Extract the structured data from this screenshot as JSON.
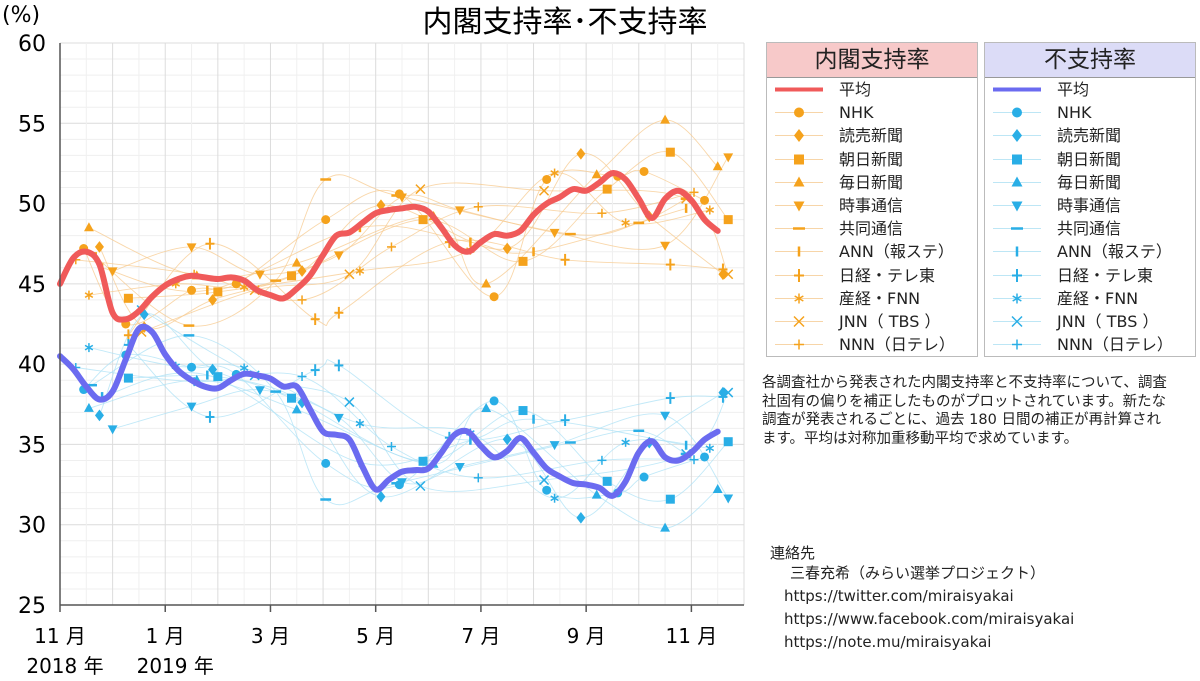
{
  "chart_data": {
    "type": "line",
    "title": "内閣支持率･不支持率",
    "ylabel": "(%)",
    "ylim": [
      25,
      60
    ],
    "yticks": [
      25,
      30,
      35,
      40,
      45,
      50,
      55,
      60
    ],
    "xlim": [
      0,
      13
    ],
    "x_ticks": [
      {
        "x": 0,
        "label": "11 月",
        "sub": "2018 年"
      },
      {
        "x": 2,
        "label": "1 月",
        "sub": "2019 年"
      },
      {
        "x": 4,
        "label": "3 月",
        "sub": ""
      },
      {
        "x": 6,
        "label": "5 月",
        "sub": ""
      },
      {
        "x": 8,
        "label": "7 月",
        "sub": ""
      },
      {
        "x": 10,
        "label": "9 月",
        "sub": ""
      },
      {
        "x": 12,
        "label": "11 月",
        "sub": ""
      }
    ],
    "series": [
      {
        "name": "平均",
        "group": "内閣支持率",
        "color": "#f05a5a",
        "points": [
          [
            0,
            45.0
          ],
          [
            0.25,
            46.6
          ],
          [
            0.5,
            47.0
          ],
          [
            0.75,
            46.2
          ],
          [
            1.0,
            43.2
          ],
          [
            1.25,
            42.8
          ],
          [
            1.5,
            43.3
          ],
          [
            1.75,
            44.2
          ],
          [
            2.0,
            44.9
          ],
          [
            2.25,
            45.3
          ],
          [
            2.5,
            45.5
          ],
          [
            2.75,
            45.4
          ],
          [
            3.0,
            45.3
          ],
          [
            3.25,
            45.4
          ],
          [
            3.5,
            45.2
          ],
          [
            3.75,
            44.6
          ],
          [
            4.0,
            44.3
          ],
          [
            4.25,
            44.1
          ],
          [
            4.5,
            44.7
          ],
          [
            4.75,
            45.5
          ],
          [
            5.0,
            46.8
          ],
          [
            5.25,
            48.0
          ],
          [
            5.5,
            48.2
          ],
          [
            5.75,
            48.8
          ],
          [
            6.0,
            49.4
          ],
          [
            6.25,
            49.6
          ],
          [
            6.5,
            49.7
          ],
          [
            6.75,
            49.8
          ],
          [
            7.0,
            49.5
          ],
          [
            7.25,
            48.5
          ],
          [
            7.5,
            47.4
          ],
          [
            7.75,
            47.0
          ],
          [
            8.0,
            47.6
          ],
          [
            8.25,
            48.1
          ],
          [
            8.5,
            48.0
          ],
          [
            8.75,
            48.3
          ],
          [
            9.0,
            49.3
          ],
          [
            9.25,
            50.0
          ],
          [
            9.5,
            50.4
          ],
          [
            9.75,
            50.9
          ],
          [
            10.0,
            50.8
          ],
          [
            10.25,
            51.3
          ],
          [
            10.5,
            51.9
          ],
          [
            10.75,
            51.5
          ],
          [
            11.0,
            50.3
          ],
          [
            11.25,
            49.1
          ],
          [
            11.5,
            50.3
          ],
          [
            11.75,
            50.8
          ],
          [
            12.0,
            50.2
          ],
          [
            12.25,
            49.0
          ],
          [
            12.5,
            48.3
          ]
        ],
        "samples": [
          {
            "s": "circle",
            "pts": [
              [
                0.45,
                47.2
              ],
              [
                1.25,
                42.5
              ],
              [
                2.5,
                44.6
              ],
              [
                3.35,
                45.0
              ],
              [
                5.05,
                49.0
              ],
              [
                6.45,
                50.6
              ],
              [
                8.25,
                44.2
              ],
              [
                9.25,
                51.5
              ],
              [
                10.6,
                51.7
              ],
              [
                11.1,
                52.0
              ],
              [
                12.25,
                50.2
              ]
            ]
          },
          {
            "s": "diamond",
            "pts": [
              [
                0.75,
                47.3
              ],
              [
                1.6,
                42.3
              ],
              [
                2.9,
                44.0
              ],
              [
                4.6,
                45.8
              ],
              [
                6.1,
                49.9
              ],
              [
                8.5,
                47.2
              ],
              [
                9.9,
                53.1
              ],
              [
                11.2,
                49.2
              ],
              [
                12.6,
                45.6
              ]
            ]
          },
          {
            "s": "square",
            "pts": [
              [
                1.3,
                44.1
              ],
              [
                3.0,
                44.5
              ],
              [
                4.4,
                45.5
              ],
              [
                6.9,
                49.0
              ],
              [
                8.8,
                46.4
              ],
              [
                10.4,
                50.9
              ],
              [
                11.6,
                53.2
              ],
              [
                12.7,
                49.0
              ]
            ]
          },
          {
            "s": "triangle",
            "pts": [
              [
                0.55,
                48.5
              ],
              [
                2.6,
                45.5
              ],
              [
                4.5,
                46.3
              ],
              [
                7.1,
                49.2
              ],
              [
                8.1,
                45.0
              ],
              [
                10.2,
                51.8
              ],
              [
                11.5,
                55.2
              ],
              [
                12.5,
                52.3
              ]
            ]
          },
          {
            "s": "triangledown",
            "pts": [
              [
                1.0,
                45.8
              ],
              [
                2.5,
                47.3
              ],
              [
                3.8,
                45.6
              ],
              [
                5.3,
                46.8
              ],
              [
                6.5,
                50.4
              ],
              [
                7.6,
                49.6
              ],
              [
                9.4,
                48.2
              ],
              [
                11.5,
                47.4
              ],
              [
                12.7,
                52.9
              ]
            ]
          },
          {
            "s": "dash",
            "pts": [
              [
                0.6,
                46.9
              ],
              [
                2.45,
                42.4
              ],
              [
                4.1,
                45.2
              ],
              [
                5.05,
                51.5
              ],
              [
                6.4,
                50.5
              ],
              [
                9.7,
                48.1
              ],
              [
                11.0,
                48.8
              ],
              [
                11.9,
                50.3
              ]
            ]
          },
          {
            "s": "vbar",
            "pts": [
              [
                0.8,
                46.0
              ],
              [
                2.8,
                44.6
              ],
              [
                5.7,
                48.5
              ],
              [
                7.8,
                47.6
              ],
              [
                9.0,
                47.0
              ],
              [
                11.9,
                49.7
              ]
            ]
          },
          {
            "s": "plusbold",
            "pts": [
              [
                1.3,
                41.8
              ],
              [
                2.85,
                47.5
              ],
              [
                4.85,
                42.8
              ],
              [
                5.3,
                43.2
              ],
              [
                7.4,
                47.6
              ],
              [
                9.6,
                46.5
              ],
              [
                11.6,
                46.2
              ],
              [
                12.6,
                45.9
              ]
            ]
          },
          {
            "s": "asterisk",
            "pts": [
              [
                0.55,
                44.3
              ],
              [
                2.2,
                45.0
              ],
              [
                3.5,
                44.8
              ],
              [
                5.7,
                45.8
              ],
              [
                7.8,
                47.1
              ],
              [
                9.4,
                51.9
              ],
              [
                10.75,
                48.8
              ],
              [
                12.35,
                49.6
              ]
            ]
          },
          {
            "s": "cross",
            "pts": [
              [
                1.55,
                42.0
              ],
              [
                3.7,
                44.6
              ],
              [
                5.5,
                45.6
              ],
              [
                6.85,
                50.9
              ],
              [
                9.2,
                50.8
              ],
              [
                11.9,
                50.3
              ],
              [
                12.7,
                45.6
              ]
            ]
          },
          {
            "s": "plus",
            "pts": [
              [
                0.3,
                46.5
              ],
              [
                2.55,
                45.6
              ],
              [
                4.6,
                44.0
              ],
              [
                6.3,
                47.3
              ],
              [
                7.95,
                49.8
              ],
              [
                10.3,
                49.4
              ],
              [
                12.05,
                50.7
              ]
            ]
          }
        ]
      },
      {
        "name": "平均",
        "group": "不支持率",
        "color": "#6b6bf0",
        "points": [
          [
            0,
            40.5
          ],
          [
            0.25,
            39.7
          ],
          [
            0.5,
            38.6
          ],
          [
            0.75,
            37.8
          ],
          [
            1.0,
            38.3
          ],
          [
            1.25,
            40.3
          ],
          [
            1.5,
            42.2
          ],
          [
            1.75,
            42.0
          ],
          [
            2.0,
            40.6
          ],
          [
            2.25,
            39.6
          ],
          [
            2.5,
            39.0
          ],
          [
            2.75,
            38.6
          ],
          [
            3.0,
            38.5
          ],
          [
            3.25,
            39.0
          ],
          [
            3.5,
            39.4
          ],
          [
            3.75,
            39.3
          ],
          [
            4.0,
            39.1
          ],
          [
            4.25,
            38.6
          ],
          [
            4.5,
            38.6
          ],
          [
            4.75,
            37.2
          ],
          [
            5.0,
            35.8
          ],
          [
            5.25,
            35.6
          ],
          [
            5.5,
            35.3
          ],
          [
            5.75,
            33.6
          ],
          [
            6.0,
            32.2
          ],
          [
            6.25,
            32.8
          ],
          [
            6.5,
            33.3
          ],
          [
            6.75,
            33.4
          ],
          [
            7.0,
            33.5
          ],
          [
            7.25,
            34.5
          ],
          [
            7.5,
            35.6
          ],
          [
            7.75,
            35.8
          ],
          [
            8.0,
            34.9
          ],
          [
            8.25,
            34.2
          ],
          [
            8.5,
            34.6
          ],
          [
            8.75,
            35.4
          ],
          [
            9.0,
            34.5
          ],
          [
            9.25,
            33.5
          ],
          [
            9.5,
            33.0
          ],
          [
            9.75,
            32.6
          ],
          [
            10.0,
            32.5
          ],
          [
            10.25,
            32.3
          ],
          [
            10.5,
            31.8
          ],
          [
            10.75,
            32.7
          ],
          [
            11.0,
            34.5
          ],
          [
            11.25,
            35.2
          ],
          [
            11.5,
            34.2
          ],
          [
            11.75,
            34.0
          ],
          [
            12.0,
            34.5
          ],
          [
            12.25,
            35.3
          ],
          [
            12.5,
            35.8
          ]
        ]
      }
    ]
  },
  "legend": {
    "support": {
      "title": "内閣支持率",
      "header_bg": "#f7c9c9",
      "line_color": "#f05a5a",
      "sample_color": "#f5a21c",
      "items": [
        {
          "label": "平均",
          "symbol": "line"
        },
        {
          "label": "NHK",
          "symbol": "circle"
        },
        {
          "label": "読売新聞",
          "symbol": "diamond"
        },
        {
          "label": "朝日新聞",
          "symbol": "square"
        },
        {
          "label": "毎日新聞",
          "symbol": "triangle"
        },
        {
          "label": "時事通信",
          "symbol": "triangledown"
        },
        {
          "label": "共同通信",
          "symbol": "dash"
        },
        {
          "label": "ANN（報ステ）",
          "symbol": "vbar"
        },
        {
          "label": "日経・テレ東",
          "symbol": "plusbold"
        },
        {
          "label": "産経・FNN",
          "symbol": "asterisk"
        },
        {
          "label": "JNN（ TBS ）",
          "symbol": "cross"
        },
        {
          "label": "NNN（日テレ）",
          "symbol": "plus"
        }
      ]
    },
    "oppose": {
      "title": "不支持率",
      "header_bg": "#dcdcf7",
      "line_color": "#6b6bf0",
      "sample_color": "#29aee6",
      "items": [
        {
          "label": "平均",
          "symbol": "line"
        },
        {
          "label": "NHK",
          "symbol": "circle"
        },
        {
          "label": "読売新聞",
          "symbol": "diamond"
        },
        {
          "label": "朝日新聞",
          "symbol": "square"
        },
        {
          "label": "毎日新聞",
          "symbol": "triangle"
        },
        {
          "label": "時事通信",
          "symbol": "triangledown"
        },
        {
          "label": "共同通信",
          "symbol": "dash"
        },
        {
          "label": "ANN（報ステ）",
          "symbol": "vbar"
        },
        {
          "label": "日経・テレ東",
          "symbol": "plusbold"
        },
        {
          "label": "産経・FNN",
          "symbol": "asterisk"
        },
        {
          "label": "JNN（ TBS ）",
          "symbol": "cross"
        },
        {
          "label": "NNN（日テレ）",
          "symbol": "plus"
        }
      ]
    }
  },
  "note": "各調査社から発表された内閣支持率と不支持率について、調査社固有の偏りを補正したものがプロットされています。新たな調査が発表されるごとに、過去 180 日間の補正が再計算されます。平均は対称加重移動平均で求めています。",
  "contact": {
    "heading": "連絡先",
    "name": "三春充希（みらい選挙プロジェクト）",
    "urls": [
      "https://twitter.com/miraisyakai",
      "https://www.facebook.com/miraisyakai",
      "https://note.mu/miraisyakai"
    ]
  }
}
